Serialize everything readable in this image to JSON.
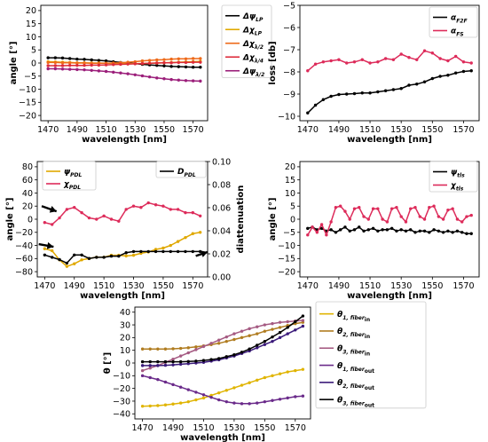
{
  "chart_data": [
    {
      "type": "line",
      "xlabel": "wavelength [nm]",
      "ylabel": "angle [°]",
      "xlim": [
        1465,
        1580
      ],
      "ylim": [
        -22,
        22
      ],
      "xticks": [
        1470,
        1490,
        1510,
        1530,
        1550,
        1570
      ],
      "yticks": [
        -20,
        -15,
        -10,
        -5,
        0,
        5,
        10,
        15,
        20
      ],
      "grid": false,
      "legend_position": "outside-right",
      "x": [
        1470,
        1475,
        1480,
        1485,
        1490,
        1495,
        1500,
        1505,
        1510,
        1515,
        1520,
        1525,
        1530,
        1535,
        1540,
        1545,
        1550,
        1555,
        1560,
        1565,
        1570,
        1575
      ],
      "series": [
        {
          "name": "ΔψLP",
          "legend_main": "Δψ",
          "legend_sub": "LP",
          "color": "#000000",
          "values": [
            2,
            2,
            1.9,
            1.7,
            1.5,
            1.4,
            1.2,
            1,
            0.8,
            0.5,
            0.2,
            0,
            -0.2,
            -0.5,
            -0.7,
            -0.9,
            -1.1,
            -1.3,
            -1.4,
            -1.5,
            -1.6,
            -1.6
          ]
        },
        {
          "name": "ΔχLP",
          "legend_main": "Δχ",
          "legend_sub": "LP",
          "color": "#e0a800",
          "values": [
            0.5,
            0.4,
            0.3,
            0.2,
            0.1,
            0.1,
            0,
            0,
            -0.1,
            -0.1,
            -0.2,
            -0.3,
            -0.2,
            -0.2,
            -0.1,
            0,
            0.1,
            0.2,
            0.3,
            0.4,
            0.5,
            0.6
          ]
        },
        {
          "name": "Δχλ/2",
          "legend_main": "Δχ",
          "legend_sub": "λ/2",
          "color": "#ee6a1a",
          "values": [
            0.2,
            0.2,
            0.1,
            0.1,
            0,
            0,
            -0.1,
            -0.1,
            -0.1,
            0,
            0.1,
            0.3,
            0.5,
            0.8,
            1,
            1.2,
            1.3,
            1.5,
            1.6,
            1.6,
            1.7,
            1.7
          ]
        },
        {
          "name": "Δχλ/4",
          "legend_main": "Δχ",
          "legend_sub": "λ/4",
          "color": "#dd2b3a",
          "values": [
            -1,
            -1,
            -1,
            -0.9,
            -0.9,
            -0.9,
            -0.8,
            -0.8,
            -0.7,
            -0.6,
            -0.5,
            -0.4,
            -0.3,
            -0.2,
            -0.1,
            0,
            0.1,
            0.1,
            0.2,
            0.2,
            0.3,
            0.3
          ]
        },
        {
          "name": "Δψλ/2",
          "legend_main": "Δψ",
          "legend_sub": "λ/2",
          "color": "#9b1e7a",
          "values": [
            -2.2,
            -2.2,
            -2.3,
            -2.4,
            -2.5,
            -2.6,
            -2.8,
            -3,
            -3.2,
            -3.5,
            -3.8,
            -4.1,
            -4.5,
            -4.9,
            -5.3,
            -5.7,
            -6,
            -6.3,
            -6.5,
            -6.7,
            -6.8,
            -6.9
          ]
        }
      ]
    },
    {
      "type": "line",
      "xlabel": "wavelength [nm]",
      "ylabel": "loss [db]",
      "xlim": [
        1465,
        1580
      ],
      "ylim": [
        -10.2,
        -5
      ],
      "xticks": [
        1470,
        1490,
        1510,
        1530,
        1550,
        1570
      ],
      "yticks": [
        -10,
        -9,
        -8,
        -7,
        -6,
        -5
      ],
      "grid": false,
      "legend_position": "top-right",
      "x": [
        1470,
        1475,
        1480,
        1485,
        1490,
        1495,
        1500,
        1505,
        1510,
        1515,
        1520,
        1525,
        1530,
        1535,
        1540,
        1545,
        1550,
        1555,
        1560,
        1565,
        1570,
        1575
      ],
      "series": [
        {
          "name": "αF2F",
          "legend_main": "α",
          "legend_sub": "F2F",
          "color": "#000000",
          "values": [
            -9.85,
            -9.5,
            -9.25,
            -9.1,
            -9.02,
            -9,
            -8.98,
            -8.95,
            -8.95,
            -8.9,
            -8.85,
            -8.8,
            -8.75,
            -8.6,
            -8.55,
            -8.45,
            -8.3,
            -8.2,
            -8.15,
            -8.05,
            -7.98,
            -7.95
          ]
        },
        {
          "name": "αFS",
          "legend_main": "α",
          "legend_sub": "FS",
          "color": "#dd2b5a",
          "values": [
            -7.95,
            -7.65,
            -7.55,
            -7.5,
            -7.45,
            -7.6,
            -7.55,
            -7.45,
            -7.6,
            -7.55,
            -7.4,
            -7.45,
            -7.2,
            -7.35,
            -7.45,
            -7.05,
            -7.15,
            -7.4,
            -7.5,
            -7.3,
            -7.55,
            -7.6
          ]
        }
      ]
    },
    {
      "type": "line",
      "xlabel": "wavelength [nm]",
      "ylabel": "angle [°]",
      "y2label": "diattenuation",
      "xlim": [
        1465,
        1580
      ],
      "ylim": [
        -88,
        88
      ],
      "y2lim": [
        0,
        0.1
      ],
      "xticks": [
        1470,
        1490,
        1510,
        1530,
        1550,
        1570
      ],
      "yticks": [
        -80,
        -60,
        -40,
        -20,
        0,
        20,
        40,
        60,
        80
      ],
      "y2ticks": [
        0,
        0.02,
        0.04,
        0.06,
        0.08,
        0.1
      ],
      "y2ticklabels": [
        "0.00",
        "0.02",
        "0.04",
        "0.06",
        "0.08",
        "0.10"
      ],
      "grid": false,
      "legend_position": "top",
      "x": [
        1470,
        1475,
        1480,
        1485,
        1490,
        1495,
        1500,
        1505,
        1510,
        1515,
        1520,
        1525,
        1530,
        1535,
        1540,
        1545,
        1550,
        1555,
        1560,
        1565,
        1570,
        1575
      ],
      "series": [
        {
          "name": "ψPDL",
          "legend_main": "ψ",
          "legend_sub": "PDL",
          "axis": "left",
          "color": "#e0a800",
          "values": [
            -45,
            -48,
            -62,
            -72,
            -68,
            -62,
            -60,
            -58,
            -58,
            -55,
            -55,
            -56,
            -55,
            -52,
            -50,
            -46,
            -44,
            -40,
            -34,
            -28,
            -22,
            -20
          ]
        },
        {
          "name": "χPDL",
          "legend_main": "χ",
          "legend_sub": "PDL",
          "axis": "left",
          "color": "#dd2b5a",
          "values": [
            -5,
            -8,
            2,
            15,
            18,
            10,
            2,
            0,
            5,
            0,
            -3,
            15,
            20,
            18,
            25,
            22,
            20,
            15,
            15,
            10,
            10,
            5
          ]
        },
        {
          "name": "DPDL",
          "legend_main": "D",
          "legend_sub": "PDL",
          "axis": "right",
          "color": "#000000",
          "values": [
            0.019,
            0.017,
            0.015,
            0.012,
            0.019,
            0.019,
            0.016,
            0.017,
            0.017,
            0.018,
            0.018,
            0.021,
            0.022,
            0.022,
            0.022,
            0.022,
            0.022,
            0.022,
            0.022,
            0.022,
            0.022,
            0.022
          ]
        }
      ],
      "annotations": [
        {
          "type": "arrow",
          "from": [
            1468,
            20
          ],
          "to": [
            1478,
            12
          ]
        },
        {
          "type": "arrow",
          "from": [
            1466,
            -38
          ],
          "to": [
            1476,
            -42
          ]
        },
        {
          "type": "arrow",
          "from": [
            1572,
            -56
          ],
          "to": [
            1580,
            -50
          ]
        }
      ]
    },
    {
      "type": "line",
      "xlabel": "wavelength [nm]",
      "ylabel": "angle [°]",
      "xlim": [
        1465,
        1580
      ],
      "ylim": [
        -22,
        22
      ],
      "xticks": [
        1470,
        1490,
        1510,
        1530,
        1550,
        1570
      ],
      "yticks": [
        -20,
        -15,
        -10,
        -5,
        0,
        5,
        10,
        15,
        20
      ],
      "grid": false,
      "legend_position": "top-right",
      "x": [
        1470,
        1473,
        1476,
        1479,
        1482,
        1485,
        1488,
        1491,
        1494,
        1497,
        1500,
        1503,
        1506,
        1509,
        1512,
        1515,
        1518,
        1521,
        1524,
        1527,
        1530,
        1533,
        1536,
        1539,
        1542,
        1545,
        1548,
        1551,
        1554,
        1557,
        1560,
        1563,
        1566,
        1569,
        1572,
        1575
      ],
      "series": [
        {
          "name": "ψtls",
          "legend_main": "ψ",
          "legend_sub": "tls",
          "color": "#000000",
          "values": [
            -3.5,
            -3,
            -4,
            -3.5,
            -4.5,
            -4,
            -5,
            -4,
            -3,
            -4.5,
            -4,
            -3,
            -4.5,
            -4,
            -3.5,
            -4.5,
            -4,
            -4,
            -3.5,
            -4.5,
            -4,
            -4.5,
            -4,
            -5,
            -4.5,
            -4.5,
            -5,
            -4,
            -4.5,
            -5,
            -4.5,
            -5,
            -4.5,
            -5,
            -5.5,
            -5.5
          ]
        },
        {
          "name": "χtls",
          "legend_main": "χ",
          "legend_sub": "tls",
          "color": "#dd2b5a",
          "values": [
            -6,
            -3,
            -5,
            -2,
            -6,
            -1,
            4.5,
            5,
            3,
            0,
            4,
            4.5,
            1,
            0,
            4,
            4,
            0,
            -1,
            4,
            4.5,
            1,
            -1,
            4,
            4.5,
            1,
            0,
            4.5,
            5,
            1,
            0,
            3.5,
            4,
            0,
            -1,
            1,
            1.5
          ]
        }
      ]
    },
    {
      "type": "line",
      "xlabel": "wavelength [nm]",
      "ylabel": "θ [°]",
      "xlim": [
        1465,
        1580
      ],
      "ylim": [
        -44,
        44
      ],
      "xticks": [
        1470,
        1490,
        1510,
        1530,
        1550,
        1570
      ],
      "yticks": [
        -40,
        -30,
        -20,
        -10,
        0,
        10,
        20,
        30,
        40
      ],
      "grid": false,
      "legend_position": "outside-right",
      "x": [
        1470,
        1475,
        1480,
        1485,
        1490,
        1495,
        1500,
        1505,
        1510,
        1515,
        1520,
        1525,
        1530,
        1535,
        1540,
        1545,
        1550,
        1555,
        1560,
        1565,
        1570,
        1575
      ],
      "series": [
        {
          "name": "θ1, fiberin",
          "legend_main": "θ",
          "legend_sub": "1, fiber",
          "legend_subsub": "in",
          "color": "#e0b400",
          "values": [
            -34,
            -33.8,
            -33.5,
            -33,
            -32.3,
            -31.5,
            -30.5,
            -29,
            -27.5,
            -25.5,
            -23.5,
            -21.5,
            -19.5,
            -17.5,
            -15.5,
            -13.5,
            -11.5,
            -10,
            -8.5,
            -7,
            -6,
            -5
          ]
        },
        {
          "name": "θ2, fiberin",
          "legend_main": "θ",
          "legend_sub": "2, fiber",
          "legend_subsub": "in",
          "color": "#b07c20",
          "values": [
            11,
            11,
            11,
            11,
            11.2,
            11.5,
            12,
            12.7,
            13.5,
            14.5,
            15.5,
            17,
            18.5,
            20,
            21.5,
            23,
            25,
            26.5,
            28,
            29.5,
            31,
            32
          ]
        },
        {
          "name": "θ3, fiberin",
          "legend_main": "θ",
          "legend_sub": "3, fiber",
          "legend_subsub": "in",
          "color": "#a55a82",
          "values": [
            -6,
            -4,
            -2,
            0.5,
            3,
            5.5,
            8,
            10.5,
            13,
            15.5,
            18,
            20.5,
            23,
            25,
            27,
            28.5,
            30,
            31,
            32,
            32.5,
            33,
            33.5
          ]
        },
        {
          "name": "θ1, fiberout",
          "legend_main": "θ",
          "legend_sub": "1, fiber",
          "legend_subsub": "out",
          "color": "#6a2a8a",
          "values": [
            -10,
            -11.5,
            -13,
            -15,
            -17,
            -19,
            -21,
            -23,
            -25,
            -27,
            -29,
            -30.5,
            -31.5,
            -32,
            -32,
            -31.5,
            -30.5,
            -29.5,
            -28.5,
            -27.5,
            -26.5,
            -26
          ]
        },
        {
          "name": "θ2, fiberout",
          "legend_main": "θ",
          "legend_sub": "2, fiber",
          "legend_subsub": "out",
          "color": "#3a1a7a",
          "values": [
            -2,
            -2,
            -2,
            -1.8,
            -1.5,
            -1,
            -0.5,
            0,
            0.5,
            1.5,
            2.5,
            4,
            5.5,
            7.5,
            9.5,
            12,
            14.5,
            17,
            20,
            23,
            26,
            29
          ]
        },
        {
          "name": "θ3, fiberout",
          "legend_main": "θ",
          "legend_sub": "3, fiber",
          "legend_subsub": "out",
          "color": "#000000",
          "values": [
            1,
            1,
            1,
            1,
            1,
            1,
            1.2,
            1.5,
            2,
            2.7,
            3.5,
            5,
            6.5,
            8.5,
            11,
            14,
            17,
            20.5,
            24,
            28,
            32.5,
            37
          ]
        }
      ]
    }
  ]
}
